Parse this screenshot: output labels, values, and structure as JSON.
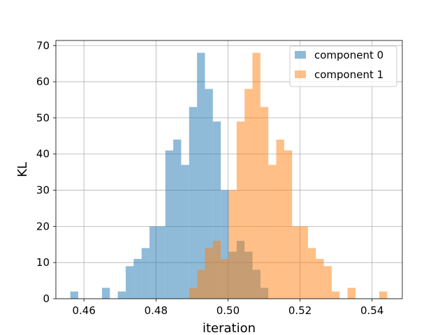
{
  "chart_data": {
    "type": "histogram",
    "xlabel": "iteration",
    "ylabel": "KL",
    "xlim": [
      0.4522,
      0.5484
    ],
    "ylim": [
      0,
      71.4
    ],
    "xticks": [
      0.46,
      0.48,
      0.5,
      0.52,
      0.54
    ],
    "xtick_labels": [
      "0.46",
      "0.48",
      "0.50",
      "0.52",
      "0.54"
    ],
    "yticks": [
      0,
      10,
      20,
      30,
      40,
      50,
      60,
      70
    ],
    "ytick_labels": [
      "0",
      "10",
      "20",
      "30",
      "40",
      "50",
      "60",
      "70"
    ],
    "grid": true,
    "legend_position": "top-right",
    "series": [
      {
        "name": "component 0",
        "color": "#1f77b4",
        "opacity": 0.5,
        "bins": [
          {
            "x0": 0.4562,
            "x1": 0.4584,
            "count": 2
          },
          {
            "x0": 0.465,
            "x1": 0.4672,
            "count": 3
          },
          {
            "x0": 0.4694,
            "x1": 0.4716,
            "count": 2
          },
          {
            "x0": 0.4716,
            "x1": 0.4738,
            "count": 9
          },
          {
            "x0": 0.4738,
            "x1": 0.476,
            "count": 11
          },
          {
            "x0": 0.476,
            "x1": 0.4782,
            "count": 14
          },
          {
            "x0": 0.4782,
            "x1": 0.4804,
            "count": 20
          },
          {
            "x0": 0.4804,
            "x1": 0.4826,
            "count": 20
          },
          {
            "x0": 0.4826,
            "x1": 0.4848,
            "count": 41
          },
          {
            "x0": 0.4848,
            "x1": 0.487,
            "count": 44
          },
          {
            "x0": 0.487,
            "x1": 0.4892,
            "count": 37
          },
          {
            "x0": 0.4892,
            "x1": 0.4914,
            "count": 53
          },
          {
            "x0": 0.4914,
            "x1": 0.4936,
            "count": 68
          },
          {
            "x0": 0.4936,
            "x1": 0.4958,
            "count": 58
          },
          {
            "x0": 0.4958,
            "x1": 0.498,
            "count": 49
          },
          {
            "x0": 0.498,
            "x1": 0.5002,
            "count": 30
          },
          {
            "x0": 0.5002,
            "x1": 0.5024,
            "count": 13
          },
          {
            "x0": 0.5024,
            "x1": 0.5046,
            "count": 16
          },
          {
            "x0": 0.5046,
            "x1": 0.5068,
            "count": 13
          },
          {
            "x0": 0.5068,
            "x1": 0.509,
            "count": 8
          },
          {
            "x0": 0.509,
            "x1": 0.5112,
            "count": 3
          }
        ]
      },
      {
        "name": "component 1",
        "color": "#ff7f0e",
        "opacity": 0.5,
        "bins": [
          {
            "x0": 0.4892,
            "x1": 0.4914,
            "count": 3
          },
          {
            "x0": 0.4914,
            "x1": 0.4936,
            "count": 8
          },
          {
            "x0": 0.4936,
            "x1": 0.4958,
            "count": 14
          },
          {
            "x0": 0.4958,
            "x1": 0.498,
            "count": 16
          },
          {
            "x0": 0.498,
            "x1": 0.5002,
            "count": 11
          },
          {
            "x0": 0.5002,
            "x1": 0.5024,
            "count": 30
          },
          {
            "x0": 0.5024,
            "x1": 0.5046,
            "count": 49
          },
          {
            "x0": 0.5046,
            "x1": 0.5068,
            "count": 58
          },
          {
            "x0": 0.5068,
            "x1": 0.509,
            "count": 68
          },
          {
            "x0": 0.509,
            "x1": 0.5112,
            "count": 53
          },
          {
            "x0": 0.5112,
            "x1": 0.5134,
            "count": 37
          },
          {
            "x0": 0.5134,
            "x1": 0.5156,
            "count": 44
          },
          {
            "x0": 0.5156,
            "x1": 0.5178,
            "count": 41
          },
          {
            "x0": 0.5178,
            "x1": 0.52,
            "count": 20
          },
          {
            "x0": 0.52,
            "x1": 0.5222,
            "count": 20
          },
          {
            "x0": 0.5222,
            "x1": 0.5244,
            "count": 14
          },
          {
            "x0": 0.5244,
            "x1": 0.5266,
            "count": 11
          },
          {
            "x0": 0.5266,
            "x1": 0.5288,
            "count": 9
          },
          {
            "x0": 0.5288,
            "x1": 0.531,
            "count": 2
          },
          {
            "x0": 0.5332,
            "x1": 0.5354,
            "count": 3
          },
          {
            "x0": 0.542,
            "x1": 0.5442,
            "count": 2
          }
        ]
      }
    ]
  }
}
